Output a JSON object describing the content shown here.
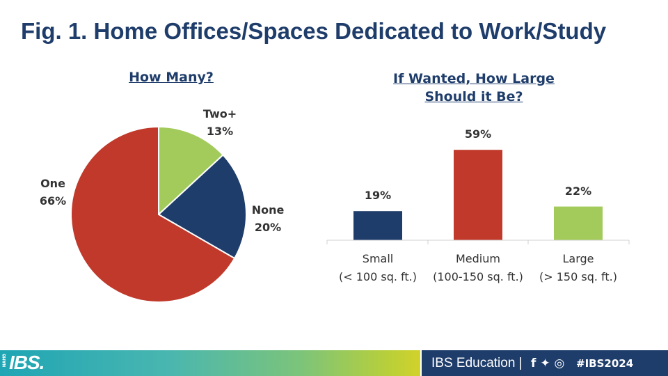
{
  "title": "Fig. 1. Home Offices/Spaces Dedicated to Work/Study",
  "chart_data": [
    {
      "type": "pie",
      "title": "How Many?",
      "slices": [
        {
          "label": "Two+",
          "value": 13,
          "value_label": "13%",
          "color": "#a3cb5b"
        },
        {
          "label": "None",
          "value": 20,
          "value_label": "20%",
          "color": "#1f3d6b"
        },
        {
          "label": "One",
          "value": 66,
          "value_label": "66%",
          "color": "#c0392b"
        }
      ]
    },
    {
      "type": "bar",
      "title_line1": "If Wanted, How Large",
      "title_line2": "Should it Be?",
      "categories": [
        {
          "line1": "Small",
          "line2": "(< 100 sq. ft.)"
        },
        {
          "line1": "Medium",
          "line2": "(100-150 sq. ft.)"
        },
        {
          "line1": "Large",
          "line2": "(> 150 sq. ft.)"
        }
      ],
      "values": [
        19,
        59,
        22
      ],
      "value_labels": [
        "19%",
        "59%",
        "22%"
      ],
      "colors": [
        "#1f3d6b",
        "#c0392b",
        "#a3cb5b"
      ],
      "ylim": [
        0,
        100
      ],
      "grid": false
    }
  ],
  "footer": {
    "logo_small": "NAHB",
    "logo": "IBS.",
    "text": "IBS Education |",
    "icons": [
      "facebook-icon",
      "twitter-icon",
      "instagram-icon"
    ],
    "icons_glyphs": "f ✦ ◎",
    "hashtag": "#IBS2024"
  }
}
